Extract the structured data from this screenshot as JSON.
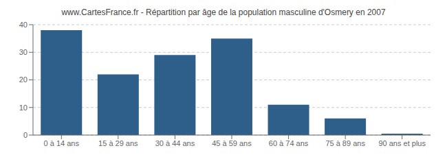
{
  "chart_data": {
    "type": "bar",
    "title": "www.CartesFrance.fr - Répartition par âge de la population masculine d'Osmery en 2007",
    "categories": [
      "0 à 14 ans",
      "15 à 29 ans",
      "30 à 44 ans",
      "45 à 59 ans",
      "60 à 74 ans",
      "75 à 89 ans",
      "90 ans et plus"
    ],
    "values": [
      38,
      22,
      29,
      35,
      11,
      6,
      0.5
    ],
    "color": "#2e5f8a",
    "ylim": [
      0,
      40
    ],
    "yticks": [
      0,
      10,
      20,
      30,
      40
    ],
    "grid": true
  }
}
